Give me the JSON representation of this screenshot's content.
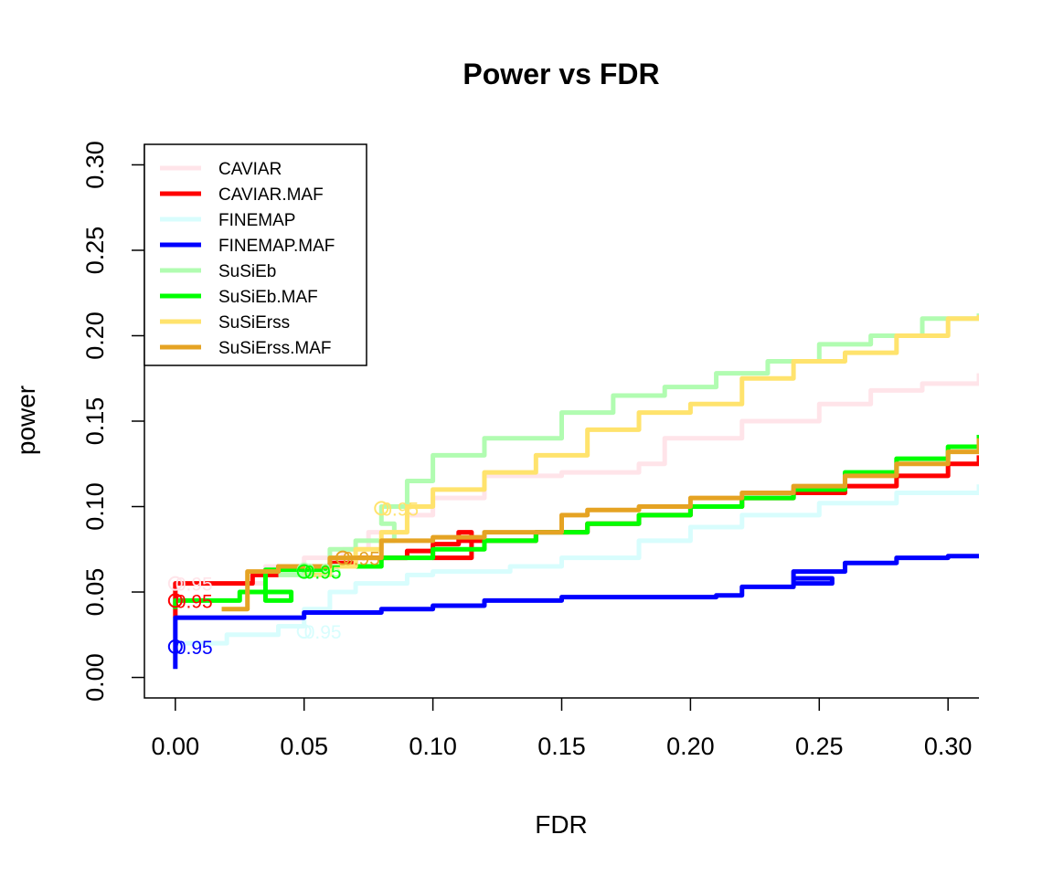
{
  "chart_data": {
    "type": "line",
    "title": "Power vs FDR",
    "xlabel": "FDR",
    "ylabel": "power",
    "xlim": [
      -0.012,
      0.312
    ],
    "ylim": [
      -0.012,
      0.312
    ],
    "xticks": [
      0.0,
      0.05,
      0.1,
      0.15,
      0.2,
      0.25,
      0.3
    ],
    "xtick_labels": [
      "0.00",
      "0.05",
      "0.10",
      "0.15",
      "0.20",
      "0.25",
      "0.30"
    ],
    "yticks": [
      0.0,
      0.05,
      0.1,
      0.15,
      0.2,
      0.25,
      0.3
    ],
    "ytick_labels": [
      "0.00",
      "0.05",
      "0.10",
      "0.15",
      "0.20",
      "0.25",
      "0.30"
    ],
    "legend_position": "top-left",
    "series": [
      {
        "name": "CAVIAR",
        "color": "#FFE4E9",
        "x": [
          0.027,
          0.035,
          0.05,
          0.065,
          0.075,
          0.09,
          0.1,
          0.12,
          0.15,
          0.18,
          0.19,
          0.19,
          0.22,
          0.25,
          0.27,
          0.29,
          0.312
        ],
        "y": [
          0.055,
          0.065,
          0.07,
          0.075,
          0.085,
          0.095,
          0.105,
          0.118,
          0.12,
          0.125,
          0.13,
          0.14,
          0.15,
          0.16,
          0.168,
          0.172,
          0.178
        ],
        "marker": {
          "x": 0.0,
          "y": 0.055,
          "label": "0.95"
        }
      },
      {
        "name": "CAVIAR.MAF",
        "color": "#FF0000",
        "x": [
          0.0,
          0.0,
          0.02,
          0.03,
          0.04,
          0.06,
          0.07,
          0.09,
          0.1,
          0.11,
          0.115,
          0.1,
          0.11,
          0.14,
          0.16,
          0.18,
          0.2,
          0.22,
          0.24,
          0.26,
          0.28,
          0.3,
          0.312
        ],
        "y": [
          0.035,
          0.055,
          0.055,
          0.06,
          0.065,
          0.067,
          0.07,
          0.074,
          0.078,
          0.085,
          0.07,
          0.078,
          0.08,
          0.085,
          0.09,
          0.095,
          0.1,
          0.105,
          0.108,
          0.112,
          0.118,
          0.125,
          0.13
        ],
        "marker": {
          "x": 0.0,
          "y": 0.045,
          "label": "0.95"
        }
      },
      {
        "name": "FINEMAP",
        "color": "#D8FDFD",
        "x": [
          0.0,
          0.02,
          0.04,
          0.05,
          0.06,
          0.07,
          0.09,
          0.1,
          0.13,
          0.15,
          0.18,
          0.2,
          0.22,
          0.25,
          0.28,
          0.312
        ],
        "y": [
          0.02,
          0.025,
          0.03,
          0.04,
          0.05,
          0.055,
          0.06,
          0.062,
          0.065,
          0.07,
          0.08,
          0.088,
          0.095,
          0.102,
          0.108,
          0.113
        ],
        "marker": {
          "x": 0.05,
          "y": 0.027,
          "label": "0.95"
        }
      },
      {
        "name": "FINEMAP.MAF",
        "color": "#0000FF",
        "x": [
          0.0,
          0.0,
          0.02,
          0.05,
          0.08,
          0.1,
          0.12,
          0.15,
          0.18,
          0.21,
          0.22,
          0.24,
          0.255,
          0.24,
          0.26,
          0.28,
          0.3,
          0.312
        ],
        "y": [
          0.005,
          0.035,
          0.035,
          0.038,
          0.04,
          0.042,
          0.045,
          0.047,
          0.047,
          0.048,
          0.053,
          0.058,
          0.055,
          0.062,
          0.067,
          0.07,
          0.071,
          0.072
        ],
        "marker": {
          "x": 0.0,
          "y": 0.018,
          "label": "0.95"
        }
      },
      {
        "name": "SuSiEb",
        "color": "#B1FCB1",
        "x": [
          0.04,
          0.05,
          0.06,
          0.07,
          0.085,
          0.08,
          0.09,
          0.1,
          0.12,
          0.15,
          0.17,
          0.19,
          0.21,
          0.23,
          0.25,
          0.27,
          0.29,
          0.312
        ],
        "y": [
          0.06,
          0.065,
          0.075,
          0.08,
          0.09,
          0.1,
          0.115,
          0.13,
          0.14,
          0.155,
          0.165,
          0.17,
          0.178,
          0.185,
          0.195,
          0.2,
          0.21,
          0.213
        ],
        "marker": {
          "x": 0.05,
          "y": 0.063,
          "label": "0.95"
        }
      },
      {
        "name": "SuSiEb.MAF",
        "color": "#00FF00",
        "x": [
          0.0,
          0.0,
          0.02,
          0.025,
          0.045,
          0.035,
          0.06,
          0.08,
          0.1,
          0.12,
          0.14,
          0.16,
          0.18,
          0.2,
          0.22,
          0.24,
          0.26,
          0.28,
          0.3,
          0.312
        ],
        "y": [
          0.04,
          0.045,
          0.045,
          0.05,
          0.045,
          0.063,
          0.065,
          0.07,
          0.075,
          0.08,
          0.085,
          0.09,
          0.095,
          0.1,
          0.105,
          0.11,
          0.12,
          0.128,
          0.135,
          0.142
        ],
        "marker": {
          "x": 0.05,
          "y": 0.062,
          "label": "0.95"
        }
      },
      {
        "name": "SuSiErss",
        "color": "#FFE36D",
        "x": [
          0.05,
          0.06,
          0.07,
          0.08,
          0.09,
          0.1,
          0.12,
          0.14,
          0.16,
          0.18,
          0.2,
          0.22,
          0.24,
          0.26,
          0.28,
          0.3,
          0.312
        ],
        "y": [
          0.06,
          0.065,
          0.075,
          0.085,
          0.1,
          0.11,
          0.12,
          0.13,
          0.145,
          0.155,
          0.16,
          0.175,
          0.185,
          0.19,
          0.2,
          0.21,
          0.212
        ],
        "marker": {
          "x": 0.08,
          "y": 0.099,
          "label": "0.95"
        }
      },
      {
        "name": "SuSiErss.MAF",
        "color": "#E5A323",
        "x": [
          0.018,
          0.028,
          0.04,
          0.06,
          0.08,
          0.1,
          0.12,
          0.14,
          0.15,
          0.16,
          0.18,
          0.2,
          0.22,
          0.24,
          0.26,
          0.28,
          0.3,
          0.312
        ],
        "y": [
          0.04,
          0.062,
          0.065,
          0.07,
          0.08,
          0.082,
          0.085,
          0.085,
          0.095,
          0.098,
          0.1,
          0.105,
          0.108,
          0.112,
          0.118,
          0.125,
          0.132,
          0.14
        ],
        "marker": {
          "x": 0.065,
          "y": 0.07,
          "label": "0.95"
        }
      }
    ]
  }
}
